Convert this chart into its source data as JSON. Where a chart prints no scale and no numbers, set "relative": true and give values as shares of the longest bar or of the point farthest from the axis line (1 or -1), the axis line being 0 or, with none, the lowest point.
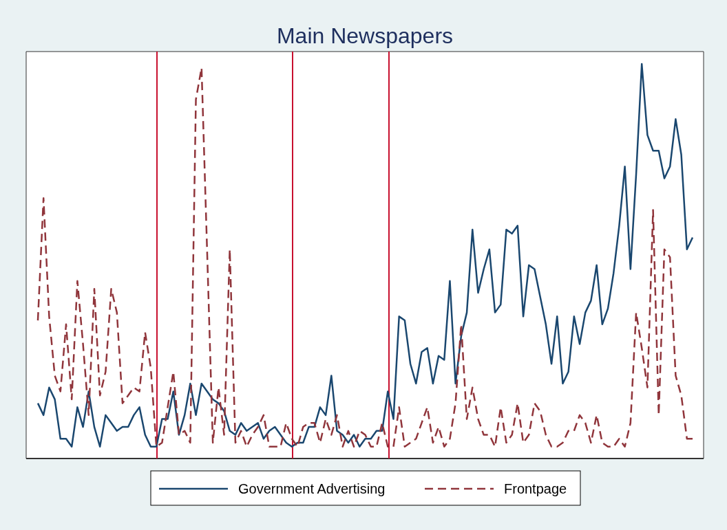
{
  "chart_data": {
    "type": "line",
    "title": "Main Newspapers",
    "relative": true,
    "legend": "bottom",
    "categories": [
      null,
      null,
      null,
      null,
      null,
      null,
      null,
      null,
      null,
      null,
      null,
      null,
      null,
      null,
      null,
      null,
      null,
      null,
      null,
      null,
      null,
      null,
      null,
      null,
      null,
      null,
      null,
      null,
      null,
      null,
      null,
      null,
      null,
      null,
      null,
      null,
      null,
      null,
      null,
      null,
      null,
      null,
      null,
      null,
      null,
      null,
      null,
      null,
      null,
      null,
      null,
      null,
      null,
      null,
      null,
      null,
      null,
      null,
      null,
      null,
      null,
      null,
      null,
      null,
      null,
      null,
      null,
      null,
      null,
      null,
      null,
      null,
      null,
      null,
      null,
      null,
      null,
      null,
      null,
      null,
      null,
      null,
      null,
      null,
      null,
      null,
      null,
      null,
      null,
      null,
      null,
      null,
      null,
      null,
      null,
      null,
      null,
      null,
      null,
      null,
      null,
      null,
      null,
      null,
      null,
      null,
      null,
      null,
      null,
      null,
      null,
      null,
      null,
      null,
      null,
      null,
      null
    ],
    "series": [
      {
        "name": "Government Advertising",
        "color": "#1a476f",
        "line_style": "solid",
        "values": [
          0.14,
          0.11,
          0.18,
          0.15,
          0.05,
          0.05,
          0.03,
          0.13,
          0.08,
          0.17,
          0.08,
          0.03,
          0.11,
          0.09,
          0.07,
          0.08,
          0.08,
          0.11,
          0.13,
          0.06,
          0.03,
          0.03,
          0.1,
          0.1,
          0.17,
          0.06,
          0.11,
          0.19,
          0.11,
          0.19,
          0.17,
          0.15,
          0.14,
          0.12,
          0.07,
          0.06,
          0.09,
          0.07,
          0.08,
          0.09,
          0.05,
          0.07,
          0.08,
          0.06,
          0.04,
          0.03,
          0.04,
          0.04,
          0.08,
          0.08,
          0.13,
          0.11,
          0.21,
          0.07,
          0.06,
          0.04,
          0.06,
          0.03,
          0.05,
          0.05,
          0.07,
          0.07,
          0.17,
          0.1,
          0.36,
          0.35,
          0.24,
          0.19,
          0.27,
          0.28,
          0.19,
          0.26,
          0.25,
          0.45,
          0.19,
          0.31,
          0.37,
          0.58,
          0.42,
          0.48,
          0.53,
          0.37,
          0.39,
          0.58,
          0.57,
          0.59,
          0.36,
          0.49,
          0.48,
          0.41,
          0.34,
          0.24,
          0.36,
          0.19,
          0.22,
          0.36,
          0.29,
          0.37,
          0.4,
          0.49,
          0.34,
          0.38,
          0.47,
          0.59,
          0.74,
          0.48,
          0.72,
          1,
          0.82,
          0.78,
          0.78,
          0.71,
          0.74,
          0.86,
          0.77,
          0.53,
          0.56
        ]
      },
      {
        "name": "Frontpage",
        "color": "#90353b",
        "line_style": "dashed",
        "values": [
          0.35,
          0.66,
          0.36,
          0.21,
          0.17,
          0.34,
          0.15,
          0.45,
          0.29,
          0.11,
          0.43,
          0.16,
          0.22,
          0.43,
          0.37,
          0.14,
          0.16,
          0.18,
          0.17,
          0.32,
          0.23,
          0.03,
          0.04,
          0.13,
          0.22,
          0.06,
          0.07,
          0.04,
          0.91,
          0.99,
          0.52,
          0.04,
          0.18,
          0.06,
          0.53,
          0.04,
          0.07,
          0.03,
          0.06,
          0.08,
          0.11,
          0.03,
          0.03,
          0.03,
          0.09,
          0.05,
          0.03,
          0.08,
          0.09,
          0.09,
          0.04,
          0.1,
          0.06,
          0.11,
          0.03,
          0.07,
          0.03,
          0.07,
          0.06,
          0.03,
          0.03,
          0.09,
          0.03,
          0.03,
          0.13,
          0.03,
          0.04,
          0.05,
          0.09,
          0.13,
          0.04,
          0.08,
          0.03,
          0.05,
          0.14,
          0.34,
          0.1,
          0.18,
          0.1,
          0.06,
          0.06,
          0.03,
          0.13,
          0.04,
          0.06,
          0.14,
          0.04,
          0.06,
          0.14,
          0.12,
          0.06,
          0.03,
          0.03,
          0.04,
          0.07,
          0.07,
          0.11,
          0.09,
          0.04,
          0.11,
          0.04,
          0.03,
          0.03,
          0.05,
          0.03,
          0.09,
          0.37,
          0.28,
          0.18,
          0.63,
          0.11,
          0.53,
          0.51,
          0.21,
          0.16,
          0.05,
          0.05
        ]
      }
    ]
  }
}
